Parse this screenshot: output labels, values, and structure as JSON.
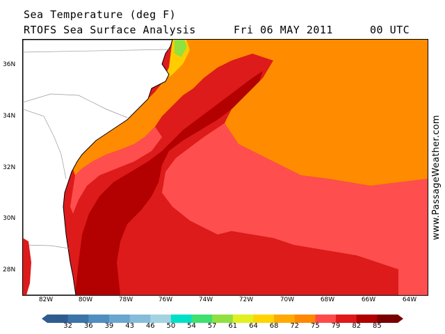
{
  "header": {
    "title_line1": "Sea Temperature (deg F)",
    "title_line2": "RTOFS Sea Surface Analysis",
    "date": "Fri 06 MAY 2011",
    "time": "00 UTC"
  },
  "map": {
    "lat_labels": [
      "36N",
      "34N",
      "32N",
      "30N",
      "28N"
    ],
    "lon_labels": [
      "82W",
      "80W",
      "78W",
      "76W",
      "74W",
      "72W",
      "70W",
      "68W",
      "66W",
      "64W"
    ]
  },
  "credit": "www.PassageWeather.com",
  "colorbar": {
    "labels": [
      "32",
      "36",
      "39",
      "43",
      "46",
      "50",
      "54",
      "57",
      "61",
      "64",
      "68",
      "72",
      "75",
      "79",
      "82",
      "85"
    ],
    "colors": [
      "#2f5c8f",
      "#3b74a8",
      "#4f8fc0",
      "#6aa6cf",
      "#86bcd9",
      "#a3d3e3",
      "#00e0c8",
      "#40e070",
      "#90e040",
      "#e0f020",
      "#ffd400",
      "#ffaa00",
      "#ff8800",
      "#ff4a4a",
      "#e01818",
      "#b00000",
      "#7a0000"
    ]
  },
  "colors": {
    "land": "#ffffff",
    "coast": "#000000",
    "sst_72": "#ff8c00",
    "sst_75": "#ff4e4e",
    "sst_79": "#dd1b1b",
    "sst_82": "#b30000",
    "sst_68": "#ffcc00",
    "sst_61": "#90e040"
  }
}
